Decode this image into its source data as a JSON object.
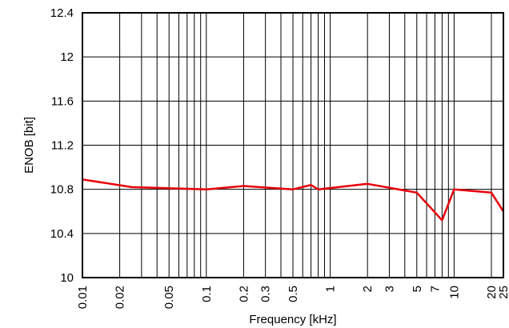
{
  "chart_data": {
    "type": "line",
    "xlabel": "Frequency [kHz]",
    "ylabel": "ENOB [bit]",
    "x_scale": "log",
    "xlim": [
      0.01,
      25
    ],
    "ylim": [
      10,
      12.4
    ],
    "grid": true,
    "y_ticks": [
      {
        "value": 10,
        "label": "10"
      },
      {
        "value": 10.4,
        "label": "10.4"
      },
      {
        "value": 10.8,
        "label": "10.8"
      },
      {
        "value": 11.2,
        "label": "11.2"
      },
      {
        "value": 11.6,
        "label": "11.6"
      },
      {
        "value": 12,
        "label": "12"
      },
      {
        "value": 12.4,
        "label": "12.4"
      }
    ],
    "x_ticks": [
      {
        "value": 0.01,
        "label": "0.01"
      },
      {
        "value": 0.02,
        "label": "0.02"
      },
      {
        "value": 0.05,
        "label": "0.05"
      },
      {
        "value": 0.1,
        "label": "0.1"
      },
      {
        "value": 0.2,
        "label": "0.2"
      },
      {
        "value": 0.3,
        "label": "0.3"
      },
      {
        "value": 0.5,
        "label": "0.5"
      },
      {
        "value": 1,
        "label": "1"
      },
      {
        "value": 2,
        "label": "2"
      },
      {
        "value": 3,
        "label": "3"
      },
      {
        "value": 5,
        "label": "5"
      },
      {
        "value": 7,
        "label": "7"
      },
      {
        "value": 10,
        "label": "10"
      },
      {
        "value": 20,
        "label": "20"
      },
      {
        "value": 25,
        "label": "25"
      }
    ],
    "x_gridlines": [
      0.02,
      0.03,
      0.04,
      0.05,
      0.06,
      0.07,
      0.08,
      0.09,
      0.1,
      0.2,
      0.3,
      0.4,
      0.5,
      0.6,
      0.7,
      0.8,
      0.9,
      1,
      2,
      3,
      4,
      5,
      6,
      7,
      8,
      9,
      10,
      20
    ],
    "series": [
      {
        "color": "#e8000b",
        "x": [
          0.01,
          0.025,
          0.1,
          0.2,
          0.5,
          0.7,
          0.8,
          2,
          5,
          8,
          10,
          20,
          25
        ],
        "y": [
          10.89,
          10.82,
          10.8,
          10.83,
          10.8,
          10.84,
          10.8,
          10.85,
          10.77,
          10.52,
          10.8,
          10.77,
          10.6
        ]
      }
    ]
  }
}
